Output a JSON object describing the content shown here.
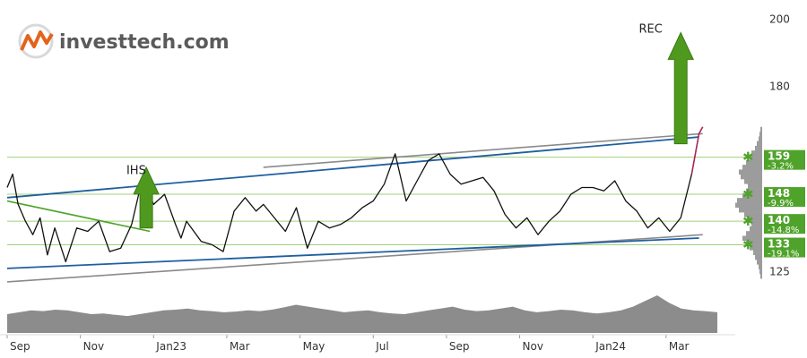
{
  "logo": {
    "text": "investtech.com"
  },
  "colors": {
    "price": "#111111",
    "price_up": "#b0245a",
    "price_down": "#2f8f2f",
    "channel_blue": "#1f5f9f",
    "channel_gray": "#8a8a8a",
    "hs_line": "#4fa32a",
    "support_line": "#9fd17a",
    "badge": "#4fa32a",
    "arrow": "#4f9a1e",
    "volume": "#8c8c8c",
    "histogram": "#9c9c9c"
  },
  "chart_data": {
    "type": "line",
    "x_ticks": [
      "Sep",
      "Nov",
      "Jan23",
      "Mar",
      "May",
      "Jul",
      "Sep",
      "Nov",
      "Jan24",
      "Mar"
    ],
    "y_ticks": [
      125,
      180,
      200
    ],
    "ylim": [
      118,
      203
    ],
    "xlim": [
      0,
      19.4
    ],
    "series": [
      {
        "x": [
          0,
          0.15,
          0.3,
          0.5,
          0.7,
          0.9,
          1.1,
          1.3,
          1.6,
          1.9,
          2.2,
          2.5,
          2.8,
          3.1,
          3.4,
          3.7,
          4.0,
          4.3,
          4.6,
          4.75,
          4.9,
          5.1,
          5.3,
          5.6,
          5.9,
          6.2,
          6.5,
          6.8,
          7.0,
          7.3,
          7.6,
          7.9,
          8.2,
          8.5,
          8.8,
          9.1,
          9.4,
          9.7,
          10.0,
          10.3,
          10.6,
          10.9,
          11.2,
          11.5,
          11.8,
          12.1,
          12.4,
          12.7,
          13.0,
          13.3,
          13.6,
          13.9,
          14.2,
          14.5,
          14.8,
          15.1,
          15.4,
          15.7,
          16.0,
          16.3,
          16.6,
          16.9,
          17.2,
          17.5,
          17.8,
          18.1,
          18.4,
          18.7,
          18.8,
          18.9,
          19.0
        ],
        "values": [
          150,
          154,
          145,
          140,
          136,
          141,
          130,
          138,
          128,
          138,
          137,
          140,
          131,
          132,
          139,
          153,
          145,
          148,
          139,
          135,
          140,
          137,
          134,
          133,
          131,
          143,
          147,
          143,
          145,
          141,
          137,
          144,
          132,
          140,
          138,
          139,
          141,
          144,
          146,
          151,
          160,
          146,
          152,
          158,
          160,
          154,
          151,
          152,
          153,
          149,
          142,
          138,
          141,
          136,
          140,
          143,
          148,
          150,
          150,
          149,
          152,
          146,
          143,
          138,
          141,
          137,
          141,
          154,
          160,
          166,
          168
        ],
        "name": ""
      }
    ],
    "volume": [
      0.5,
      0.55,
      0.6,
      0.58,
      0.62,
      0.6,
      0.55,
      0.5,
      0.52,
      0.48,
      0.45,
      0.5,
      0.55,
      0.6,
      0.62,
      0.65,
      0.6,
      0.58,
      0.55,
      0.57,
      0.6,
      0.58,
      0.62,
      0.68,
      0.75,
      0.7,
      0.65,
      0.6,
      0.55,
      0.58,
      0.6,
      0.55,
      0.52,
      0.5,
      0.55,
      0.6,
      0.65,
      0.7,
      0.62,
      0.58,
      0.6,
      0.65,
      0.7,
      0.6,
      0.55,
      0.58,
      0.62,
      0.6,
      0.55,
      0.52,
      0.55,
      0.6,
      0.7,
      0.85,
      1.0,
      0.8,
      0.65,
      0.6,
      0.58,
      0.55
    ],
    "channel_upper": {
      "x": [
        0,
        18.9
      ],
      "values": [
        147,
        165
      ]
    },
    "channel_lower": {
      "x": [
        0,
        18.9
      ],
      "values": [
        126,
        135
      ]
    },
    "gray_upper": {
      "x": [
        7.0,
        19.0
      ],
      "values": [
        156,
        166
      ]
    },
    "gray_lower": {
      "x": [
        0,
        19.0
      ],
      "values": [
        122,
        136
      ]
    },
    "hs_neckline": {
      "x": [
        0,
        3.9
      ],
      "values": [
        146,
        137
      ]
    },
    "support_levels": [
      {
        "price": "159",
        "pct": "-3.2%",
        "value": 159
      },
      {
        "price": "148",
        "pct": "-9.9%",
        "value": 148
      },
      {
        "price": "140",
        "pct": "-14.8%",
        "value": 140
      },
      {
        "price": "133",
        "pct": "-19.1%",
        "value": 133
      }
    ],
    "annotations": [
      {
        "text": "IHS",
        "x": 3.6,
        "value": 154
      },
      {
        "text": "REC",
        "x": 17.6,
        "value": 196
      }
    ],
    "arrows": [
      {
        "x": 3.8,
        "from": 138,
        "to": 156
      },
      {
        "x": 18.4,
        "from": 163,
        "to": 196
      }
    ]
  }
}
